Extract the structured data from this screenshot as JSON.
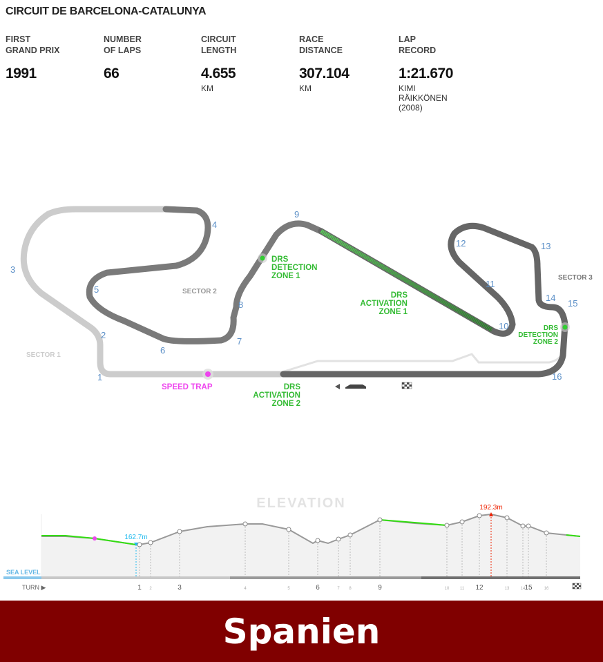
{
  "circuit": {
    "name": "CIRCUIT DE BARCELONA-CATALUNYA"
  },
  "stats": [
    {
      "label": "FIRST\nGRAND PRIX",
      "value": "1991",
      "unit": ""
    },
    {
      "label": "NUMBER\nOF LAPS",
      "value": "66",
      "unit": ""
    },
    {
      "label": "CIRCUIT\nLENGTH",
      "value": "4.655",
      "unit": "KM"
    },
    {
      "label": "RACE\nDISTANCE",
      "value": "307.104",
      "unit": "KM"
    },
    {
      "label": "LAP\nRECORD",
      "value": "1:21.670",
      "unit": "KIMI\nRÄIKKÖNEN\n(2008)"
    }
  ],
  "map": {
    "turns": [
      "1",
      "2",
      "3",
      "4",
      "5",
      "6",
      "7",
      "8",
      "9",
      "10",
      "11",
      "12",
      "13",
      "14",
      "15",
      "16"
    ],
    "sector1": "SECTOR 1",
    "sector2": "SECTOR 2",
    "sector3": "SECTOR 3",
    "drs_detection_1": [
      "DRS",
      "DETECTION",
      "ZONE 1"
    ],
    "drs_activation_1": [
      "DRS",
      "ACTIVATION",
      "ZONE 1"
    ],
    "drs_detection_2": [
      "DRS",
      "DETECTION",
      "ZONE 2"
    ],
    "drs_activation_2": [
      "DRS",
      "ACTIVATION",
      "ZONE 2"
    ],
    "speed_trap": "SPEED TRAP",
    "colors": {
      "sector1": "#cccccc",
      "sector2": "#7a7a7a",
      "sector3": "#666666",
      "drs": "#33cc33",
      "turn": "#5b8fc7",
      "speed_trap": "#ee44ee"
    }
  },
  "elevation": {
    "title": "ELEVATION",
    "min_label": "162.7m",
    "max_label": "192.3m",
    "sea_level": "SEA LEVEL",
    "turn_label": "TURN ▶",
    "turn_ticks": [
      "1",
      "2",
      "3",
      "4",
      "5",
      "6",
      "7",
      "8",
      "9",
      "10",
      "11",
      "12",
      "13",
      "14",
      "15",
      "16"
    ],
    "colors": {
      "min": "#22bbee",
      "max": "#ee2200",
      "line": "#999999",
      "drs": "#33dd11"
    }
  },
  "banner": {
    "text": "Spanien",
    "color": "#800000"
  }
}
